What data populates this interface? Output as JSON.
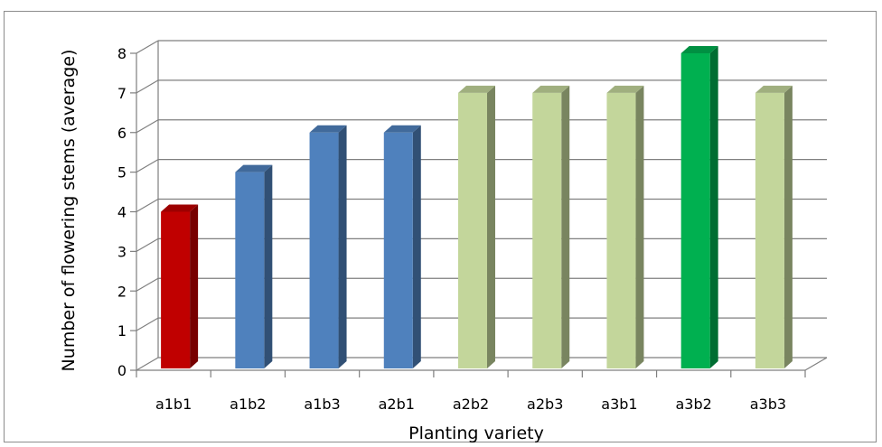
{
  "chart_data": {
    "type": "bar",
    "title": "",
    "xlabel": "Planting variety",
    "ylabel": "Number of flowering stems (average)",
    "categories": [
      "a1b1",
      "a1b2",
      "a1b3",
      "a2b1",
      "a2b2",
      "a2b3",
      "a3b1",
      "a3b2",
      "a3b3"
    ],
    "values": [
      4,
      5,
      6,
      6,
      7,
      7,
      7,
      8,
      7
    ],
    "ylim": [
      0,
      8
    ],
    "yticks": [
      "0",
      "1",
      "2",
      "3",
      "4",
      "5",
      "6",
      "7",
      "8"
    ],
    "grid": true,
    "style": "3d-column",
    "bar_colors": [
      "#c00000",
      "#4f81bd",
      "#4f81bd",
      "#4f81bd",
      "#c3d69b",
      "#c3d69b",
      "#c3d69b",
      "#00b050",
      "#c3d69b"
    ]
  }
}
